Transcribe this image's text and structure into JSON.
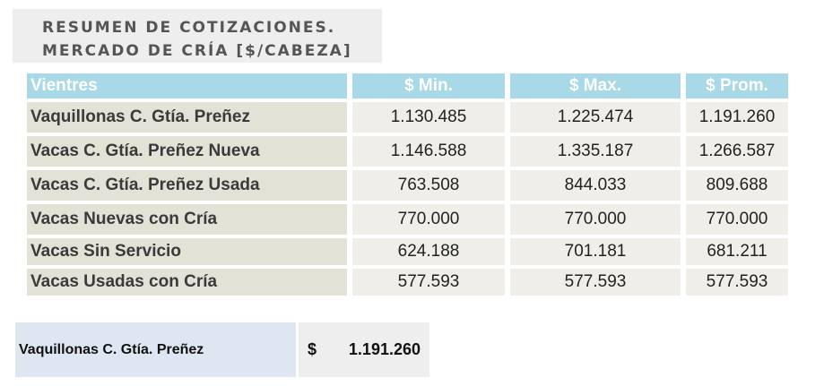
{
  "title": {
    "line1": "RESUMEN DE COTIZACIONES.",
    "line2": "MERCADO DE CRÍA [$/CABEZA]"
  },
  "table": {
    "headers": [
      "Vientres",
      "$ Min.",
      "$ Max.",
      "$ Prom."
    ],
    "rows": [
      {
        "label": "Vaquillonas C. Gtía. Preñez",
        "min": "1.130.485",
        "max": "1.225.474",
        "prom": "1.191.260"
      },
      {
        "label": "Vacas C. Gtía. Preñez Nueva",
        "min": "1.146.588",
        "max": "1.335.187",
        "prom": "1.266.587"
      },
      {
        "label": "Vacas C. Gtía. Preñez Usada",
        "min": "763.508",
        "max": "844.033",
        "prom": "809.688"
      },
      {
        "label": "Vacas Nuevas con Cría",
        "min": "770.000",
        "max": "770.000",
        "prom": "770.000"
      },
      {
        "label": "Vacas Sin Servicio",
        "min": "624.188",
        "max": "701.181",
        "prom": "681.211"
      },
      {
        "label": "Vacas Usadas con Cría",
        "min": "577.593",
        "max": "577.593",
        "prom": "577.593"
      }
    ]
  },
  "summary": {
    "label": "Vaquillonas C. Gtía. Preñez",
    "currency": "$",
    "value": "1.191.260"
  }
}
